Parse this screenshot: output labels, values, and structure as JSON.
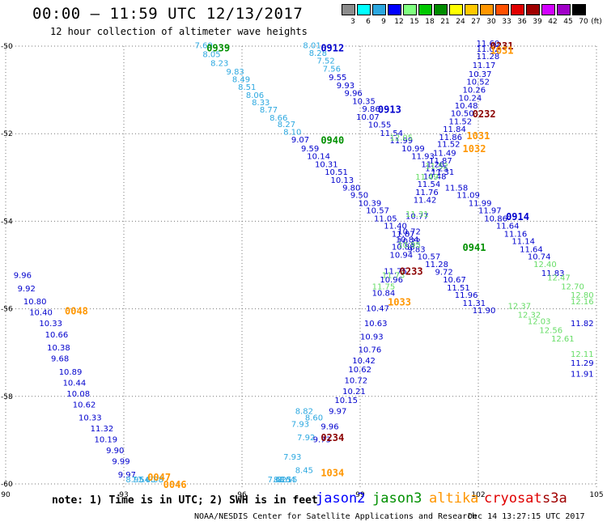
{
  "header": {
    "title": "00:00 – 11:59 UTC 12/13/2017",
    "subtitle": "12 hour collection of altimeter wave heights"
  },
  "color_scale": {
    "unit": "(ft)",
    "items": [
      {
        "label": "3",
        "color": "#8c8c8c"
      },
      {
        "label": "6",
        "color": "#00ffff"
      },
      {
        "label": "9",
        "color": "#2ca8e0"
      },
      {
        "label": "12",
        "color": "#0000ff"
      },
      {
        "label": "15",
        "color": "#7fff7f"
      },
      {
        "label": "18",
        "color": "#00c800"
      },
      {
        "label": "21",
        "color": "#008c00"
      },
      {
        "label": "24",
        "color": "#ffff00"
      },
      {
        "label": "27",
        "color": "#ffc800"
      },
      {
        "label": "30",
        "color": "#ff9600"
      },
      {
        "label": "33",
        "color": "#ff5000"
      },
      {
        "label": "36",
        "color": "#e00000"
      },
      {
        "label": "39",
        "color": "#a00000"
      },
      {
        "label": "42",
        "color": "#d200ff"
      },
      {
        "label": "45",
        "color": "#a000c8"
      },
      {
        "label": "70",
        "color": "#000000"
      }
    ]
  },
  "map": {
    "x_ticks": [
      "90",
      "93",
      "96",
      "99",
      "102",
      "105"
    ],
    "y_ticks": [
      "-50",
      "-52",
      "-54",
      "-56",
      "-58",
      "-60"
    ],
    "lon_range": [
      90,
      105
    ],
    "lat_range": [
      -60,
      -50
    ],
    "grid": "dotted",
    "swh_colors": {
      "blue": "#0000cd",
      "cyan": "#2ca8e0",
      "lightgreen": "#66dd66",
      "green": "#009000"
    },
    "time_labels": [
      {
        "text": "0939",
        "lon": 95.1,
        "lat": -50.05,
        "color": "#009000"
      },
      {
        "text": "0912",
        "lon": 98.0,
        "lat": -50.05,
        "color": "#0000cd"
      },
      {
        "text": "0231",
        "lon": 102.3,
        "lat": -50.0,
        "color": "#8b0000"
      },
      {
        "text": "1031",
        "lon": 102.3,
        "lat": -50.1,
        "color": "#ff9600"
      },
      {
        "text": "0913",
        "lon": 99.45,
        "lat": -51.45,
        "color": "#0000cd"
      },
      {
        "text": "0232",
        "lon": 101.85,
        "lat": -51.55,
        "color": "#8b0000"
      },
      {
        "text": "0940",
        "lon": 98.0,
        "lat": -52.15,
        "color": "#009000"
      },
      {
        "text": "1031",
        "lon": 101.7,
        "lat": -52.05,
        "color": "#ff9600"
      },
      {
        "text": "1032",
        "lon": 101.6,
        "lat": -52.35,
        "color": "#ff9600"
      },
      {
        "text": "0914",
        "lon": 102.7,
        "lat": -53.9,
        "color": "#0000cd"
      },
      {
        "text": "0941",
        "lon": 101.6,
        "lat": -54.6,
        "color": "#009000"
      },
      {
        "text": "0233",
        "lon": 100.0,
        "lat": -55.15,
        "color": "#8b0000"
      },
      {
        "text": "0048",
        "lon": 91.5,
        "lat": -56.05,
        "color": "#ff9600"
      },
      {
        "text": "1033",
        "lon": 99.7,
        "lat": -55.85,
        "color": "#ff9600"
      },
      {
        "text": "0234",
        "lon": 98.0,
        "lat": -58.95,
        "color": "#8b0000"
      },
      {
        "text": "1034",
        "lon": 98.0,
        "lat": -59.75,
        "color": "#ff9600"
      },
      {
        "text": "0047",
        "lon": 93.6,
        "lat": -59.85,
        "color": "#ff9600"
      },
      {
        "text": "0046",
        "lon": 94.0,
        "lat": -60.2,
        "color": "#ff9600"
      }
    ],
    "tracks": [
      {
        "name": "pass-0939",
        "color": "#2ca8e0",
        "points": [
          [
            "7.69",
            94.8,
            -50.05
          ],
          [
            "8.05",
            95.0,
            -50.25
          ],
          [
            "8.23",
            95.2,
            -50.45
          ],
          [
            "9.83",
            95.6,
            -50.65
          ],
          [
            "8.49",
            95.75,
            -50.82
          ],
          [
            "8.51",
            95.9,
            -51.0
          ],
          [
            "8.06",
            96.1,
            -51.18
          ],
          [
            "8.33",
            96.25,
            -51.35
          ],
          [
            "8.77",
            96.45,
            -51.52
          ],
          [
            "8.66",
            96.7,
            -51.7
          ],
          [
            "8.27",
            96.9,
            -51.85
          ],
          [
            "8.10",
            97.05,
            -52.02
          ]
        ]
      },
      {
        "name": "pass-0940-blue",
        "color": "#0000cd",
        "points": [
          [
            "9.07",
            97.25,
            -52.2
          ],
          [
            "9.59",
            97.5,
            -52.4
          ],
          [
            "10.14",
            97.65,
            -52.58
          ],
          [
            "10.31",
            97.85,
            -52.76
          ],
          [
            "10.51",
            98.1,
            -52.94
          ],
          [
            "10.13",
            98.25,
            -53.12
          ],
          [
            "9.80",
            98.55,
            -53.3
          ],
          [
            "9.50",
            98.75,
            -53.47
          ],
          [
            "10.39",
            98.95,
            -53.65
          ],
          [
            "10.57",
            99.15,
            -53.82
          ],
          [
            "11.05",
            99.35,
            -54.0
          ],
          [
            "11.40",
            99.6,
            -54.17
          ],
          [
            "11.87",
            99.8,
            -54.35
          ],
          [
            "10.22",
            99.95,
            -54.52
          ],
          [
            "9.83",
            100.2,
            -54.7
          ],
          [
            "10.57",
            100.45,
            -54.87
          ],
          [
            "11.28",
            100.65,
            -55.05
          ],
          [
            "9.72",
            100.9,
            -55.22
          ],
          [
            "10.67",
            101.1,
            -55.4
          ],
          [
            "11.51",
            101.2,
            -55.58
          ],
          [
            "11.96",
            101.4,
            -55.75
          ],
          [
            "11.31",
            101.6,
            -55.93
          ],
          [
            "11.90",
            101.85,
            -56.1
          ]
        ]
      },
      {
        "name": "pass-0912",
        "color": "#2ca8e0",
        "points": [
          [
            "8.01",
            97.55,
            -50.05
          ],
          [
            "8.28",
            97.7,
            -50.22
          ],
          [
            "7.52",
            97.9,
            -50.4
          ],
          [
            "7.56",
            98.05,
            -50.58
          ]
        ]
      },
      {
        "name": "pass-0913-blue",
        "color": "#0000cd",
        "points": [
          [
            "9.55",
            98.2,
            -50.78
          ],
          [
            "9.93",
            98.4,
            -50.96
          ],
          [
            "9.96",
            98.6,
            -51.14
          ],
          [
            "10.35",
            98.8,
            -51.32
          ],
          [
            "9.86",
            99.05,
            -51.5
          ],
          [
            "10.07",
            98.9,
            -51.68
          ],
          [
            "10.55",
            99.2,
            -51.86
          ],
          [
            "11.54",
            99.5,
            -52.05
          ],
          [
            "11.99",
            99.75,
            -52.22
          ],
          [
            "10.99",
            100.05,
            -52.4
          ],
          [
            "11.93",
            100.3,
            -52.58
          ],
          [
            "11.26",
            100.55,
            -52.76
          ],
          [
            "11.31",
            100.8,
            -52.94
          ],
          [
            "11.58",
            101.15,
            -53.3
          ],
          [
            "11.09",
            101.45,
            -53.47
          ],
          [
            "11.99",
            101.75,
            -53.65
          ],
          [
            "11.97",
            102.0,
            -53.82
          ],
          [
            "10.86",
            102.15,
            -54.0
          ],
          [
            "11.64",
            102.45,
            -54.17
          ],
          [
            "11.16",
            102.65,
            -54.35
          ],
          [
            "11.14",
            102.85,
            -54.52
          ],
          [
            "11.64",
            103.05,
            -54.7
          ],
          [
            "10.74",
            103.25,
            -54.87
          ],
          [
            "11.83",
            103.6,
            -55.25
          ],
          [
            "11.82",
            104.9,
            -56.4
          ],
          [
            "11.29",
            104.4,
            -57.3
          ],
          [
            "11.91",
            104.85,
            -57.55
          ]
        ]
      },
      {
        "name": "pass-0914-green",
        "color": "#66dd66",
        "points": [
          [
            "12.40",
            103.4,
            -55.05
          ],
          [
            "12.47",
            103.75,
            -55.35
          ],
          [
            "12.70",
            104.1,
            -55.55
          ],
          [
            "12.80",
            104.45,
            -55.75
          ],
          [
            "12.16",
            104.8,
            -55.9
          ],
          [
            "12.37",
            102.75,
            -56.0
          ],
          [
            "12.32",
            103.0,
            -56.2
          ],
          [
            "12.03",
            103.25,
            -56.35
          ],
          [
            "12.56",
            103.55,
            -56.55
          ],
          [
            "12.61",
            103.85,
            -56.75
          ],
          [
            "12.11",
            104.35,
            -57.1
          ],
          [
            "12.05",
            99.75,
            -52.15
          ]
        ]
      },
      {
        "name": "pass-0231",
        "color": "#0000cd",
        "points": [
          [
            "11.60",
            101.95,
            -50.0
          ],
          [
            "11.02",
            101.95,
            -50.13
          ],
          [
            "11.28",
            101.95,
            -50.3
          ],
          [
            "11.17",
            101.85,
            -50.5
          ],
          [
            "10.37",
            101.75,
            -50.7
          ],
          [
            "10.52",
            101.7,
            -50.88
          ],
          [
            "10.26",
            101.6,
            -51.06
          ],
          [
            "10.24",
            101.5,
            -51.25
          ],
          [
            "10.48",
            101.4,
            -51.42
          ],
          [
            "10.50",
            101.3,
            -51.6
          ],
          [
            "11.52",
            101.25,
            -51.78
          ],
          [
            "11.84",
            101.1,
            -51.96
          ],
          [
            "11.86",
            101.0,
            -52.14
          ],
          [
            "11.52",
            100.95,
            -52.3
          ],
          [
            "11.49",
            100.85,
            -52.5
          ],
          [
            "11.87",
            100.75,
            -52.68
          ],
          [
            "11.25",
            100.65,
            -52.86
          ],
          [
            "10.48",
            100.6,
            -53.04
          ],
          [
            "11.54",
            100.45,
            -53.22
          ],
          [
            "11.76",
            100.4,
            -53.4
          ],
          [
            "11.42",
            100.35,
            -53.58
          ],
          [
            "10.77",
            100.15,
            -53.95
          ],
          [
            "10.72",
            99.95,
            -54.3
          ],
          [
            "10.84",
            99.9,
            -54.48
          ],
          [
            "10.88",
            99.8,
            -54.65
          ],
          [
            "10.94",
            99.75,
            -54.83
          ],
          [
            "11.75",
            99.6,
            -55.2
          ],
          [
            "10.96",
            99.5,
            -55.4
          ],
          [
            "10.84",
            99.3,
            -55.7
          ],
          [
            "10.47",
            99.15,
            -56.05
          ],
          [
            "10.63",
            99.1,
            -56.4
          ],
          [
            "10.93",
            99.0,
            -56.7
          ],
          [
            "10.76",
            98.95,
            -57.0
          ],
          [
            "10.42",
            98.8,
            -57.25
          ],
          [
            "10.62",
            98.7,
            -57.45
          ],
          [
            "10.72",
            98.6,
            -57.7
          ],
          [
            "10.21",
            98.55,
            -57.95
          ],
          [
            "10.15",
            98.35,
            -58.15
          ],
          [
            "9.97",
            98.2,
            -58.4
          ],
          [
            "9.96",
            98.0,
            -58.75
          ],
          [
            "9.73",
            97.8,
            -59.05
          ]
        ]
      },
      {
        "name": "pass-1031-green",
        "color": "#66dd66",
        "points": [
          [
            "11.52",
            100.65,
            -52.8
          ],
          [
            "11.49",
            100.4,
            -53.05
          ],
          [
            "11.31",
            100.15,
            -53.9
          ],
          [
            "10.95",
            99.95,
            -54.6
          ],
          [
            "11.73",
            99.55,
            -55.3
          ],
          [
            "11.75",
            99.3,
            -55.55
          ]
        ]
      },
      {
        "name": "pass-1034-cyan",
        "color": "#2ca8e0",
        "points": [
          [
            "8.82",
            97.35,
            -58.4
          ],
          [
            "8.60",
            97.6,
            -58.55
          ],
          [
            "7.93",
            97.25,
            -58.7
          ],
          [
            "7.92",
            97.4,
            -59.0
          ],
          [
            "7.93",
            97.05,
            -59.45
          ],
          [
            "8.45",
            97.35,
            -59.75
          ],
          [
            "8.64",
            96.9,
            -60.0
          ],
          [
            "8.15",
            96.95,
            -60.2
          ],
          [
            "8.25",
            96.8,
            -60.45
          ],
          [
            "7.61",
            96.65,
            -60.55
          ]
        ]
      },
      {
        "name": "pass-0048",
        "color": "#0000cd",
        "points": [
          [
            "9.96",
            90.2,
            -55.3
          ],
          [
            "9.92",
            90.3,
            -55.6
          ],
          [
            "10.80",
            90.45,
            -55.9
          ],
          [
            "10.40",
            90.6,
            -56.15
          ],
          [
            "10.33",
            90.85,
            -56.4
          ],
          [
            "10.66",
            91.0,
            -56.65
          ],
          [
            "10.38",
            91.05,
            -56.95
          ],
          [
            "9.68",
            91.15,
            -57.2
          ],
          [
            "10.89",
            91.35,
            -57.5
          ],
          [
            "10.44",
            91.45,
            -57.75
          ],
          [
            "10.08",
            91.55,
            -58.0
          ],
          [
            "10.62",
            91.7,
            -58.25
          ],
          [
            "10.33",
            91.85,
            -58.55
          ],
          [
            "11.32",
            92.15,
            -58.8
          ],
          [
            "10.19",
            92.25,
            -59.05
          ],
          [
            "9.90",
            92.55,
            -59.3
          ],
          [
            "9.99",
            92.7,
            -59.55
          ],
          [
            "9.97",
            92.85,
            -59.85
          ]
        ]
      },
      {
        "name": "pass-0047-cyan",
        "color": "#2ca8e0",
        "points": [
          [
            "8.95",
            93.05,
            -60.1
          ],
          [
            "7.54",
            93.2,
            -60.35
          ],
          [
            "7.60",
            93.35,
            -60.6
          ],
          [
            "6.98",
            93.55,
            -60.9
          ]
        ]
      }
    ]
  },
  "footer": {
    "note": "note: 1) Time is in UTC; 2) SWH is in feet",
    "legend": [
      {
        "name": "jason2",
        "color": "#0000ff"
      },
      {
        "name": "jason3",
        "color": "#009000"
      },
      {
        "name": "altika",
        "color": "#ff9600"
      },
      {
        "name": "cryosat",
        "color": "#e00000"
      },
      {
        "name": "s3a",
        "color": "#a00000"
      }
    ],
    "credit": "NOAA/NESDIS Center for Satellite Applications and Research",
    "stamp": "Dec 14 13:27:15 UTC 2017"
  }
}
